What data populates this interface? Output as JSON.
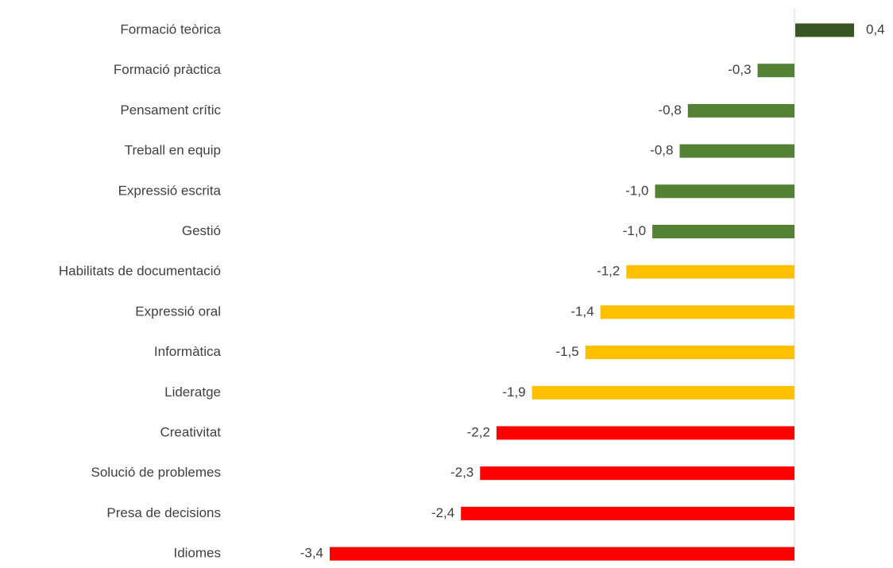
{
  "chart_data": {
    "type": "bar",
    "orientation": "horizontal",
    "categories": [
      "Formació teòrica",
      "Formació pràctica",
      "Pensament crític",
      "Treball en equip",
      "Expressió escrita",
      "Gestió",
      "Habilitats de documentació",
      "Expressió oral",
      "Informàtica",
      "Lideratge",
      "Creativitat",
      "Solució de problemes",
      "Presa de decisions",
      "Idiomes"
    ],
    "values": [
      0.43,
      -0.27,
      -0.78,
      -0.84,
      -1.02,
      -1.04,
      -1.23,
      -1.42,
      -1.53,
      -1.92,
      -2.18,
      -2.3,
      -2.44,
      -3.4
    ],
    "value_labels": [
      "0,4",
      "-0,3",
      "-0,8",
      "-0,8",
      "-1,0",
      "-1,0",
      "-1,2",
      "-1,4",
      "-1,5",
      "-1,9",
      "-2,2",
      "-2,3",
      "-2,4",
      "-3,4"
    ],
    "colors": [
      "#375623",
      "#548235",
      "#548235",
      "#548235",
      "#548235",
      "#548235",
      "#ffc000",
      "#ffc000",
      "#ffc000",
      "#ffc000",
      "#ff0000",
      "#ff0000",
      "#ff0000",
      "#ff0000"
    ]
  }
}
